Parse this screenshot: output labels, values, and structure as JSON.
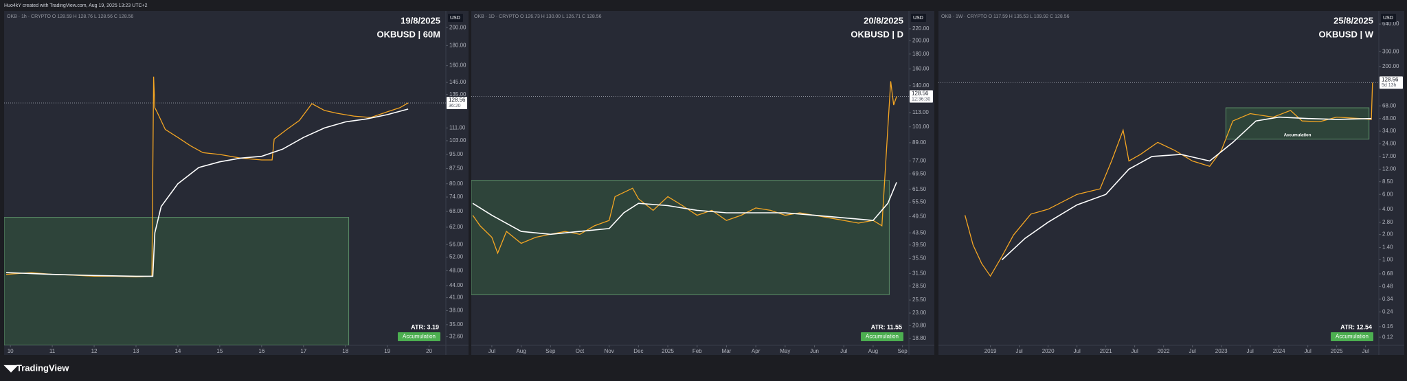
{
  "header": {
    "title": "Huo4kY created with TradingView.com, Aug 19, 2025 13:23 UTC+2"
  },
  "footer": {
    "brand": "TradingView"
  },
  "chart_data": [
    {
      "type": "line",
      "symbol_info": "OKB · 1h · CRYPTO  O 128.59  H 128.76  L 128.56  C 128.56",
      "date": "19/8/2025",
      "title": "OKBUSD | 60M",
      "currency": "USD",
      "log": true,
      "xlim": [
        9.85,
        20.4
      ],
      "xticks": [
        10,
        11,
        12,
        13,
        14,
        15,
        16,
        17,
        18,
        19,
        20
      ],
      "ylim": [
        31,
        217
      ],
      "yticks": [
        {
          "value": 32.6,
          "label": "32.60"
        },
        {
          "value": 35,
          "label": "35.00"
        },
        {
          "value": 38,
          "label": "38.00"
        },
        {
          "value": 41,
          "label": "41.00"
        },
        {
          "value": 44,
          "label": "44.00"
        },
        {
          "value": 48,
          "label": "48.00"
        },
        {
          "value": 52,
          "label": "52.00"
        },
        {
          "value": 56,
          "label": "56.00"
        },
        {
          "value": 62,
          "label": "62.00"
        },
        {
          "value": 68,
          "label": "68.00"
        },
        {
          "value": 74,
          "label": "74.00"
        },
        {
          "value": 80,
          "label": "80.00"
        },
        {
          "value": 87.5,
          "label": "87.50"
        },
        {
          "value": 95,
          "label": "95.00"
        },
        {
          "value": 103,
          "label": "103.00"
        },
        {
          "value": 111,
          "label": "111.00"
        },
        {
          "value": 135,
          "label": "135.00"
        },
        {
          "value": 145,
          "label": "145.00"
        },
        {
          "value": 160,
          "label": "160.00"
        },
        {
          "value": 180,
          "label": "180.00"
        },
        {
          "value": 200,
          "label": "200.00"
        }
      ],
      "series": [
        {
          "color": "#f5a623",
          "x": [
            9.9,
            10.5,
            11,
            11.5,
            12,
            12.5,
            13,
            13.38,
            13.42,
            13.45,
            13.5,
            13.7,
            14,
            14.3,
            14.6,
            15,
            15.5,
            16,
            16.25,
            16.3,
            16.6,
            16.9,
            17.2,
            17.5,
            17.8,
            18.2,
            18.6,
            19,
            19.3,
            19.5
          ],
          "values": [
            47,
            47.5,
            47,
            46.8,
            46.5,
            46.5,
            46.3,
            46.5,
            150,
            125,
            122,
            110,
            105,
            100,
            96,
            95,
            93,
            92,
            92,
            104,
            110,
            116,
            128,
            123,
            121,
            119,
            118,
            122,
            125,
            128.56
          ]
        },
        {
          "color": "#ffffff",
          "x": [
            9.9,
            11,
            12,
            13,
            13.4,
            13.45,
            13.6,
            14,
            14.5,
            15,
            15.5,
            16,
            16.5,
            17,
            17.5,
            18,
            18.5,
            19,
            19.5
          ],
          "values": [
            47.5,
            47,
            46.7,
            46.5,
            46.5,
            60,
            70,
            80,
            88,
            91,
            93,
            94,
            98,
            105,
            111,
            115,
            117,
            120,
            124
          ]
        }
      ],
      "zone": {
        "x": [
          9.85,
          18.08
        ],
        "y": [
          31,
          65.7
        ]
      },
      "price_line": 128.56,
      "countdown": "36:20",
      "atr": "ATR: 3.19",
      "badge": "Accumulation"
    },
    {
      "type": "line",
      "symbol_info": "OKB · 1D · CRYPTO  O 126.73  H 130.00  L 126.71  C 128.56",
      "date": "20/8/2025",
      "title": "OKBUSD | D",
      "currency": "USD",
      "log": true,
      "xlim": [
        -0.7,
        14.22
      ],
      "xticks": [
        {
          "value": 0,
          "label": "Jul"
        },
        {
          "value": 1,
          "label": "Aug"
        },
        {
          "value": 2,
          "label": "Sep"
        },
        {
          "value": 3,
          "label": "Oct"
        },
        {
          "value": 4,
          "label": "Nov"
        },
        {
          "value": 5,
          "label": "Dec"
        },
        {
          "value": 6,
          "label": "2025"
        },
        {
          "value": 7,
          "label": "Feb"
        },
        {
          "value": 8,
          "label": "Mar"
        },
        {
          "value": 9,
          "label": "Apr"
        },
        {
          "value": 10,
          "label": "May"
        },
        {
          "value": 11,
          "label": "Jun"
        },
        {
          "value": 12,
          "label": "Jul"
        },
        {
          "value": 13,
          "label": "Aug"
        },
        {
          "value": 14,
          "label": "Sep"
        }
      ],
      "ylim": [
        17.8,
        248
      ],
      "yticks": [
        {
          "value": 18.8,
          "label": "18.80"
        },
        {
          "value": 20.8,
          "label": "20.80"
        },
        {
          "value": 23,
          "label": "23.00"
        },
        {
          "value": 25.5,
          "label": "25.50"
        },
        {
          "value": 28.5,
          "label": "28.50"
        },
        {
          "value": 31.5,
          "label": "31.50"
        },
        {
          "value": 35.5,
          "label": "35.50"
        },
        {
          "value": 39.5,
          "label": "39.50"
        },
        {
          "value": 43.5,
          "label": "43.50"
        },
        {
          "value": 49.5,
          "label": "49.50"
        },
        {
          "value": 55.5,
          "label": "55.50"
        },
        {
          "value": 61.5,
          "label": "61.50"
        },
        {
          "value": 69.5,
          "label": "69.50"
        },
        {
          "value": 77,
          "label": "77.00"
        },
        {
          "value": 89,
          "label": "89.00"
        },
        {
          "value": 101,
          "label": "101.00"
        },
        {
          "value": 113,
          "label": "113.00"
        },
        {
          "value": 140,
          "label": "140.00"
        },
        {
          "value": 160,
          "label": "160.00"
        },
        {
          "value": 180,
          "label": "180.00"
        },
        {
          "value": 200,
          "label": "200.00"
        },
        {
          "value": 220,
          "label": "220.00"
        }
      ],
      "series": [
        {
          "color": "#f5a623",
          "x": [
            -0.65,
            -0.4,
            0,
            0.2,
            0.5,
            1,
            1.5,
            2,
            2.5,
            3,
            3.5,
            4,
            4.2,
            4.8,
            5,
            5.5,
            6,
            6.5,
            7,
            7.5,
            8,
            8.5,
            9,
            9.5,
            10,
            10.5,
            11,
            11.5,
            12,
            12.5,
            13,
            13.3,
            13.5,
            13.6,
            13.7,
            13.8
          ],
          "values": [
            50,
            46,
            42,
            37,
            44,
            40,
            42,
            43,
            44,
            43,
            46,
            48,
            58,
            62,
            57,
            52,
            58,
            54,
            50,
            52,
            48,
            50,
            53,
            52,
            50,
            51,
            50,
            49,
            48,
            47,
            48,
            46,
            100,
            145,
            120,
            128.56
          ]
        },
        {
          "color": "#ffffff",
          "x": [
            -0.65,
            0,
            1,
            2,
            3,
            4,
            4.5,
            5,
            6,
            7,
            8,
            9,
            10,
            11,
            12,
            13,
            13.5,
            13.8
          ],
          "values": [
            55,
            50,
            44,
            43,
            44,
            45,
            51,
            55,
            54,
            52,
            51,
            51,
            51,
            50,
            49,
            48,
            55,
            65
          ]
        }
      ],
      "zone": {
        "x": [
          -0.7,
          13.55
        ],
        "y": [
          26.6,
          66
        ]
      },
      "price_line": 128.56,
      "countdown": "12:36:30",
      "atr": "ATR: 11.55",
      "badge": "Accumulation"
    },
    {
      "type": "line",
      "symbol_info": "OKB · 1W · CRYPTO  O 117.59  H 135.53  L 109.92  C 128.56",
      "date": "25/8/2025",
      "title": "OKBUSD | W",
      "currency": "USD",
      "log": true,
      "xlim": [
        2018.1,
        2025.73
      ],
      "xticks": [
        2019,
        {
          "value": 2019.5,
          "label": "Jul"
        },
        2020,
        {
          "value": 2020.5,
          "label": "Jul"
        },
        2021,
        {
          "value": 2021.5,
          "label": "Jul"
        },
        2022,
        {
          "value": 2022.5,
          "label": "Jul"
        },
        2023,
        {
          "value": 2023.5,
          "label": "Jul"
        },
        2024,
        {
          "value": 2024.5,
          "label": "Jul"
        },
        2025,
        {
          "value": 2025.5,
          "label": "Jul"
        }
      ],
      "ylim": [
        0.096,
        850
      ],
      "yticks": [
        {
          "value": 0.12,
          "label": "0.12"
        },
        {
          "value": 0.16,
          "label": "0.16"
        },
        {
          "value": 0.24,
          "label": "0.24"
        },
        {
          "value": 0.34,
          "label": "0.34"
        },
        {
          "value": 0.48,
          "label": "0.48"
        },
        {
          "value": 0.68,
          "label": "0.68"
        },
        {
          "value": 1,
          "label": "1.00"
        },
        {
          "value": 1.4,
          "label": "1.40"
        },
        {
          "value": 2,
          "label": "2.00"
        },
        {
          "value": 2.8,
          "label": "2.80"
        },
        {
          "value": 4,
          "label": "4.00"
        },
        {
          "value": 6,
          "label": "6.00"
        },
        {
          "value": 8.5,
          "label": "8.50"
        },
        {
          "value": 12,
          "label": "12.00"
        },
        {
          "value": 17,
          "label": "17.00"
        },
        {
          "value": 24,
          "label": "24.00"
        },
        {
          "value": 34,
          "label": "34.00"
        },
        {
          "value": 48,
          "label": "48.00"
        },
        {
          "value": 68,
          "label": "68.00"
        },
        {
          "value": 200,
          "label": "200.00"
        },
        {
          "value": 300,
          "label": "300.00"
        },
        {
          "value": 640,
          "label": "640.00"
        }
      ],
      "series": [
        {
          "color": "#f5a623",
          "x": [
            2018.56,
            2018.7,
            2018.85,
            2019.0,
            2019.2,
            2019.4,
            2019.7,
            2020.0,
            2020.5,
            2020.9,
            2021.1,
            2021.3,
            2021.4,
            2021.6,
            2021.9,
            2022.2,
            2022.5,
            2022.8,
            2023.0,
            2023.2,
            2023.5,
            2023.9,
            2024.2,
            2024.4,
            2024.7,
            2025.0,
            2025.4,
            2025.6,
            2025.62
          ],
          "values": [
            3.4,
            1.5,
            0.9,
            0.64,
            1.1,
            1.97,
            3.5,
            4,
            6,
            7,
            15,
            35,
            15,
            18,
            25,
            20,
            15,
            13,
            20,
            45,
            55,
            50,
            60,
            45,
            44,
            50,
            48,
            47,
            128.56
          ]
        },
        {
          "color": "#ffffff",
          "x": [
            2019.2,
            2019.6,
            2020.0,
            2020.5,
            2021.0,
            2021.4,
            2021.8,
            2022.3,
            2022.8,
            2023.2,
            2023.6,
            2024.0,
            2024.5,
            2025.0,
            2025.6
          ],
          "values": [
            1,
            1.8,
            2.8,
            4.5,
            6,
            12,
            17,
            18,
            15,
            25,
            45,
            50,
            48,
            47,
            48
          ]
        }
      ],
      "zone": {
        "x": [
          2023.08,
          2025.56
        ],
        "y": [
          27.3,
          64.5
        ]
      },
      "zone_label": "Accumulation",
      "price_line": 128.56,
      "countdown": "5d 13h",
      "atr": "ATR: 12.54",
      "badge": "Accumulation"
    }
  ]
}
